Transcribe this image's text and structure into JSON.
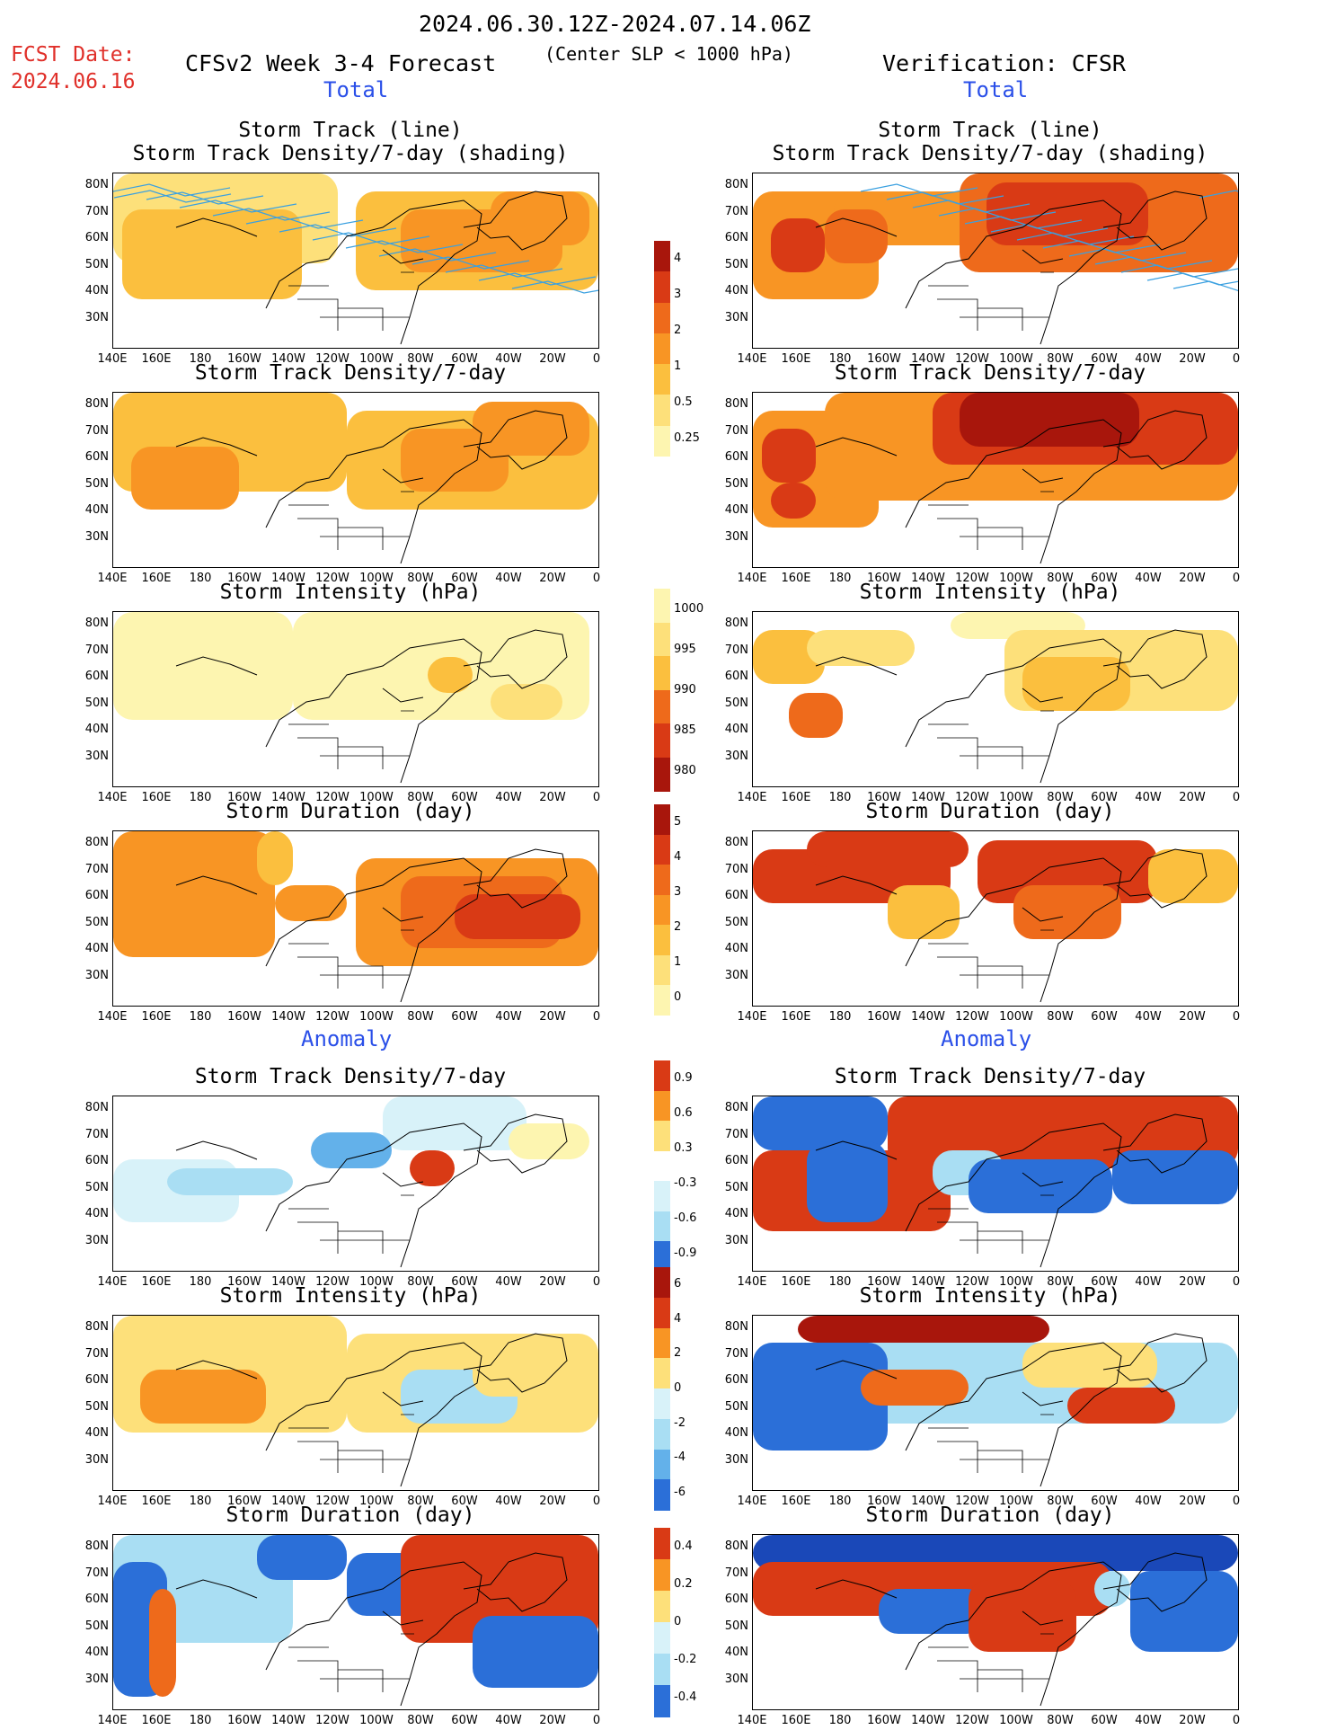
{
  "header": {
    "fcst_label": "FCST Date:",
    "fcst_date": "2024.06.16",
    "period": "2024.06.30.12Z-2024.07.14.06Z",
    "model": "CFSv2 Week 3-4 Forecast",
    "criterion": "(Center SLP < 1000 hPa)",
    "verification": "Verification: CFSR"
  },
  "sections": {
    "total_left": "Total",
    "total_right": "Total",
    "anomaly_left": "Anomaly",
    "anomaly_right": "Anomaly"
  },
  "panel_titles": {
    "track_line": "Storm Track (line)",
    "track_density_shading": "Storm Track Density/7-day (shading)",
    "track_density": "Storm Track Density/7-day",
    "intensity": "Storm Intensity (hPa)",
    "duration": "Storm Duration (day)"
  },
  "axes": {
    "lat_labels": [
      "80N",
      "70N",
      "60N",
      "50N",
      "40N",
      "30N"
    ],
    "lon_labels": [
      "140E",
      "160E",
      "180",
      "160W",
      "140W",
      "120W",
      "100W",
      "80W",
      "60W",
      "40W",
      "20W",
      "0"
    ]
  },
  "colorbars": {
    "density": [
      "4",
      "3",
      "2",
      "1",
      "0.5",
      "0.25"
    ],
    "intensity": [
      "1000",
      "995",
      "990",
      "985",
      "980"
    ],
    "duration": [
      "5",
      "4",
      "3",
      "2",
      "1",
      "0"
    ],
    "density_anom": [
      "0.9",
      "0.6",
      "0.3",
      "-0.3",
      "-0.6",
      "-0.9"
    ],
    "intensity_anom": [
      "6",
      "4",
      "2",
      "0",
      "-2",
      "-4",
      "-6"
    ],
    "duration_anom": [
      "0.4",
      "0.2",
      "0",
      "-0.2",
      "-0.4"
    ]
  },
  "colors": {
    "warm": [
      "#fdf5b0",
      "#fde07a",
      "#fbbf3e",
      "#f89524",
      "#ee6a1b",
      "#d93a15",
      "#a8160c"
    ],
    "cool": [
      "#d8f2f9",
      "#a9def3",
      "#63b1ea",
      "#2b6fd8",
      "#1a48b8"
    ],
    "track": "#3aa0e0"
  }
}
